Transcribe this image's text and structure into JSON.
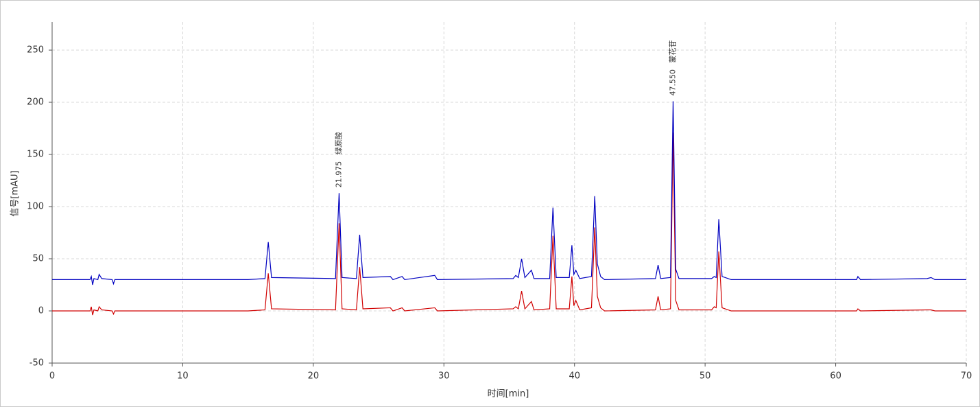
{
  "chart_data": {
    "type": "line",
    "x_label": "时间[min]",
    "y_label": "信号[mAU]",
    "xlim": [
      0,
      70
    ],
    "xticks": [
      0,
      10,
      20,
      30,
      40,
      50,
      60,
      70
    ],
    "ylim": [
      -50,
      277
    ],
    "yticks": [
      -50,
      0,
      50,
      100,
      150,
      200,
      250
    ],
    "grid": true,
    "x": [
      0,
      2.9,
      3.0,
      3.1,
      3.2,
      3.5,
      3.6,
      3.8,
      4.6,
      4.7,
      4.8,
      15.0,
      16.3,
      16.55,
      16.8,
      21.7,
      21.975,
      22.2,
      23.3,
      23.55,
      23.8,
      25.9,
      26.1,
      26.8,
      27.0,
      29.3,
      29.5,
      35.3,
      35.5,
      35.7,
      35.95,
      36.2,
      36.7,
      36.9,
      38.1,
      38.35,
      38.6,
      39.6,
      39.8,
      39.95,
      40.1,
      40.4,
      41.3,
      41.55,
      41.75,
      42.0,
      42.3,
      46.2,
      46.4,
      46.6,
      47.35,
      47.55,
      47.75,
      48.0,
      50.5,
      50.7,
      50.85,
      51.05,
      51.3,
      52.0,
      61.6,
      61.7,
      61.9,
      67.0,
      67.3,
      67.6,
      70
    ],
    "series": [
      {
        "color": "#0000c0",
        "values": [
          30,
          30,
          33,
          25,
          31,
          30,
          35,
          31,
          30,
          26,
          30,
          30,
          31,
          66,
          32,
          31,
          113,
          32,
          31,
          73,
          32,
          33,
          30,
          33,
          30,
          34,
          30,
          31,
          34,
          32,
          50,
          32,
          39,
          31,
          31,
          99,
          32,
          32,
          63,
          35,
          39,
          31,
          33,
          110,
          45,
          33,
          30,
          31,
          44,
          31,
          32,
          201,
          40,
          31,
          31,
          33,
          32,
          88,
          33,
          30,
          30,
          33,
          30,
          31,
          32,
          30,
          30
        ]
      },
      {
        "color": "#d00000",
        "values": [
          0,
          0,
          4,
          -4,
          1,
          0,
          4,
          1,
          0,
          -3,
          0,
          0,
          1,
          36,
          2,
          1,
          84,
          2,
          1,
          42,
          2,
          3,
          0,
          3,
          0,
          3,
          0,
          2,
          4,
          2,
          19,
          2,
          9,
          1,
          2,
          72,
          2,
          2,
          33,
          5,
          10,
          1,
          3,
          80,
          14,
          3,
          0,
          1,
          14,
          1,
          2,
          171,
          10,
          1,
          1,
          4,
          3,
          57,
          3,
          0,
          0,
          2,
          0,
          1,
          1,
          0,
          0
        ]
      }
    ],
    "annotations": [
      {
        "x": 21.975,
        "label": "21.975",
        "text": "绿原酸"
      },
      {
        "x": 47.55,
        "label": "47.550",
        "text": "蒙花苷"
      }
    ]
  }
}
